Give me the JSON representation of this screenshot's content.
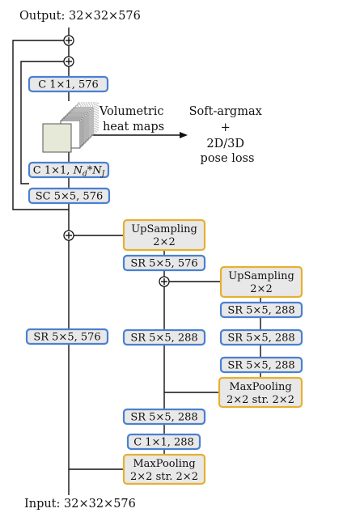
{
  "labels": {
    "output": "Output: 32×32×576",
    "input": "Input: 32×32×576",
    "heatmaps": [
      "Volumetric",
      "heat maps"
    ],
    "loss": [
      "Soft-argmax",
      "+",
      "2D/3D",
      "pose loss"
    ]
  },
  "blocks": {
    "c1x1_576": "C 1×1, 576",
    "c1x1_ndnj": {
      "pre": "C 1×1, ",
      "n1": "N",
      "s1": "d",
      "mid": "*",
      "n2": "N",
      "s2": "J"
    },
    "sc5x5_576": "SC 5×5, 576",
    "upsampling_1": [
      "UpSampling",
      "2×2"
    ],
    "sr5x5_576_mid": "SR 5×5, 576",
    "upsampling_2": [
      "UpSampling",
      "2×2"
    ],
    "sr5x5_288_a": "SR 5×5, 288",
    "sr5x5_576_left": "SR 5×5, 576",
    "sr5x5_288_mid": "SR 5×5, 288",
    "sr5x5_288_b": "SR 5×5, 288",
    "sr5x5_288_c": "SR 5×5, 288",
    "maxpool_right": [
      "MaxPooling",
      "2×2 str. 2×2"
    ],
    "sr5x5_288_low": "SR 5×5, 288",
    "c1x1_288": "C 1×1, 288",
    "maxpool_bottom": [
      "MaxPooling",
      "2×2 str. 2×2"
    ]
  },
  "colors": {
    "block_fill": "#e8e8e8",
    "conv_border": "#4a80d0",
    "resample_border": "#e6b030",
    "line": "#111111"
  }
}
